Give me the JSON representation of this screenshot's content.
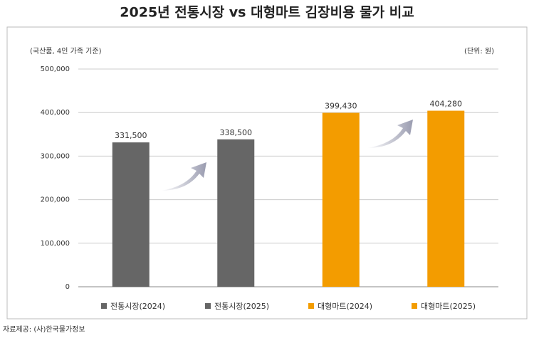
{
  "chart_data": {
    "type": "bar",
    "title": "2025년 전통시장 vs 대형마트 김장비용 물가 비교",
    "subtitle": "(국산품, 4인 가족 기준)",
    "unit_note": "(단위: 원)",
    "source": "자료제공: (사)한국물가정보",
    "categories": [
      "전통시장(2024)",
      "전통시장(2025)",
      "대형마트(2024)",
      "대형마트(2025)"
    ],
    "values": [
      331500,
      338500,
      399430,
      404280
    ],
    "value_labels": [
      "331,500",
      "338,500",
      "399,430",
      "404,280"
    ],
    "colors": [
      "#666666",
      "#666666",
      "#f39c00",
      "#f39c00"
    ],
    "ylim": [
      0,
      500000
    ],
    "yticks": [
      0,
      {
        "value": 100000,
        "label": "100,000"
      },
      {
        "value": 200000,
        "label": "200,000"
      },
      {
        "value": 300000,
        "label": "300,000"
      },
      {
        "value": 400000,
        "label": "400,000"
      },
      {
        "value": 500000,
        "label": "500,000"
      }
    ],
    "grid": true
  }
}
